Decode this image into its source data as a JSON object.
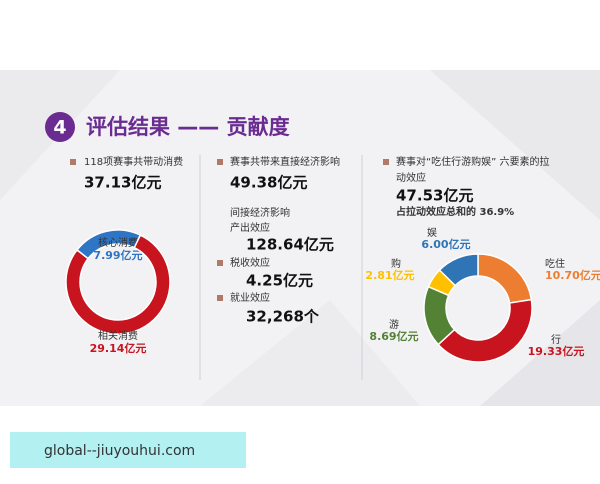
{
  "header": {
    "number": "4",
    "title": "评估结果 —— 贡献度"
  },
  "panels": {
    "left": {
      "text": "118项赛事共带动消费",
      "total": "37.13亿元"
    },
    "middle": {
      "text": "赛事共带来直接经济影响",
      "total": "49.38亿元",
      "indirect": "间接经济影响",
      "items": [
        {
          "label": "产出效应",
          "value": "128.64亿元"
        },
        {
          "label": "税收效应",
          "value": "4.25亿元"
        },
        {
          "label": "就业效应",
          "value": "32,268个"
        }
      ]
    },
    "right": {
      "text_line1": "赛事对“吃住行游购娱” 六要素的拉",
      "text_line2": "动效应",
      "total": "47.53亿元",
      "share_text": "占拉动效应总和的 36.9%"
    }
  },
  "chart_data": [
    {
      "type": "donut",
      "categories": [
        "核心消费",
        "相关消费"
      ],
      "values": [
        7.99,
        29.14
      ],
      "value_labels": [
        "7.99亿元",
        "29.14亿元"
      ],
      "colors": [
        "#2f75c5",
        "#c8141e"
      ]
    },
    {
      "type": "donut",
      "categories": [
        "吃住",
        "行",
        "游",
        "购",
        "娱"
      ],
      "values": [
        10.7,
        19.33,
        8.69,
        2.81,
        6.0
      ],
      "value_labels": [
        "10.70亿元",
        "19.33亿元",
        "8.69亿元",
        "2.81亿元",
        "6.00亿元"
      ],
      "colors": [
        "#ed7d31",
        "#c8141e",
        "#548235",
        "#ffc000",
        "#2f75b6"
      ]
    }
  ],
  "footer": {
    "watermark": "global--jiuyouhui.com"
  }
}
